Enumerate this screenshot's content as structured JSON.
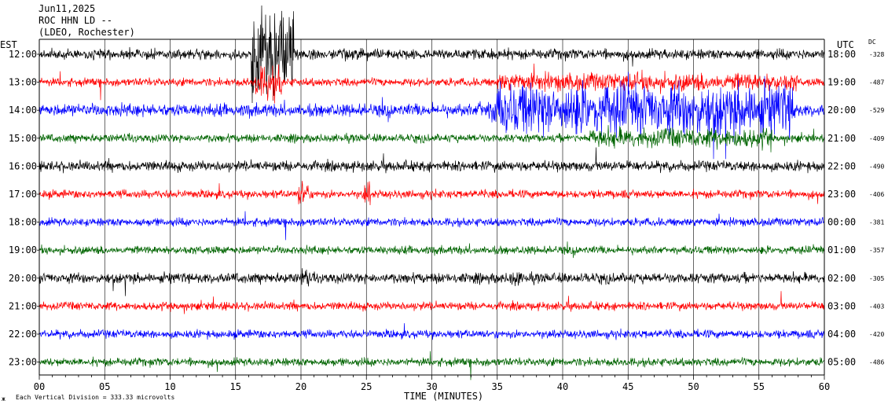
{
  "header": {
    "date": "Jun11,2025",
    "station": "ROC HHN LD --",
    "network": "(LDEO, Rochester)"
  },
  "labels": {
    "left_tz": "EST",
    "right_tz": "UTC",
    "dc": "DC",
    "footer_scale": "Each Vertical Division =  333.33 microvolts",
    "footer_mark": "ж"
  },
  "chart_data": {
    "type": "line",
    "title": "",
    "xlabel": "TIME (MINUTES)",
    "xlim": [
      0,
      60
    ],
    "x_ticks": [
      "00",
      "05",
      "10",
      "15",
      "20",
      "25",
      "30",
      "35",
      "40",
      "45",
      "50",
      "55",
      "60"
    ],
    "grid": true,
    "colors": [
      "#000000",
      "#ff0000",
      "#0000ff",
      "#006400"
    ],
    "series": [
      {
        "est": "12:00",
        "utc": "18:00",
        "dc": "-328"
      },
      {
        "est": "13:00",
        "utc": "19:00",
        "dc": "-487"
      },
      {
        "est": "14:00",
        "utc": "20:00",
        "dc": "-529"
      },
      {
        "est": "15:00",
        "utc": "21:00",
        "dc": "-409"
      },
      {
        "est": "16:00",
        "utc": "22:00",
        "dc": "-490"
      },
      {
        "est": "17:00",
        "utc": "23:00",
        "dc": "-406"
      },
      {
        "est": "18:00",
        "utc": "00:00",
        "dc": "-381"
      },
      {
        "est": "19:00",
        "utc": "01:00",
        "dc": "-357"
      },
      {
        "est": "20:00",
        "utc": "02:00",
        "dc": "-305"
      },
      {
        "est": "21:00",
        "utc": "03:00",
        "dc": "-403"
      },
      {
        "est": "22:00",
        "utc": "04:00",
        "dc": "-420"
      },
      {
        "est": "23:00",
        "utc": "05:00",
        "dc": "-486"
      }
    ]
  }
}
